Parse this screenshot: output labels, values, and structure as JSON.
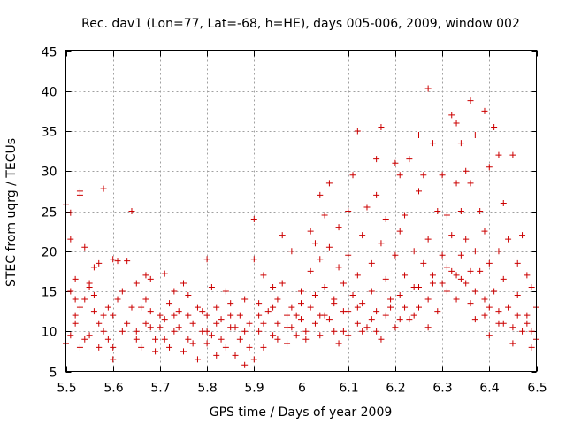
{
  "chart_data": {
    "type": "scatter",
    "title": "Rec. dav1 (Lon=77, Lat=-68, h=HE), days 005-006, 2009, window 002",
    "xlabel": "GPS time / Days of year 2009",
    "ylabel": "STEC from uqrg / TECUs",
    "xlim": [
      5.5,
      6.5
    ],
    "ylim": [
      5,
      45
    ],
    "xticks": [
      5.5,
      5.6,
      5.7,
      5.8,
      5.9,
      6.0,
      6.1,
      6.2,
      6.3,
      6.4,
      6.5
    ],
    "xtick_labels": [
      "5.5",
      "5.6",
      "5.7",
      "5.8",
      "5.9",
      "6",
      "6.1",
      "6.2",
      "6.3",
      "6.4",
      "6.5"
    ],
    "yticks": [
      5,
      10,
      15,
      20,
      25,
      30,
      35,
      40,
      45
    ],
    "ytick_labels": [
      "5",
      "10",
      "15",
      "20",
      "25",
      "30",
      "35",
      "40",
      "45"
    ],
    "grid": true,
    "marker": "plus",
    "color": "#cc0000",
    "series": [
      {
        "name": "STEC",
        "points": [
          [
            5.5,
            25.8
          ],
          [
            5.51,
            24.8
          ],
          [
            5.51,
            21.5
          ],
          [
            5.52,
            16.5
          ],
          [
            5.52,
            14.0
          ],
          [
            5.52,
            12.0
          ],
          [
            5.51,
            9.5
          ],
          [
            5.5,
            8.5
          ],
          [
            5.53,
            27.5
          ],
          [
            5.53,
            27.0
          ],
          [
            5.54,
            20.5
          ],
          [
            5.55,
            16.0
          ],
          [
            5.55,
            15.5
          ],
          [
            5.53,
            13.0
          ],
          [
            5.54,
            9.0
          ],
          [
            5.53,
            8.0
          ],
          [
            5.56,
            18.0
          ],
          [
            5.57,
            18.5
          ],
          [
            5.56,
            12.5
          ],
          [
            5.57,
            11.0
          ],
          [
            5.58,
            10.0
          ],
          [
            5.57,
            8.0
          ],
          [
            5.58,
            27.8
          ],
          [
            5.59,
            13.0
          ],
          [
            5.6,
            19.0
          ],
          [
            5.61,
            18.8
          ],
          [
            5.6,
            12.0
          ],
          [
            5.6,
            8.0
          ],
          [
            5.6,
            6.5
          ],
          [
            5.62,
            15.0
          ],
          [
            5.63,
            18.8
          ],
          [
            5.63,
            11.0
          ],
          [
            5.64,
            25.0
          ],
          [
            5.65,
            16.0
          ],
          [
            5.65,
            10.0
          ],
          [
            5.66,
            8.0
          ],
          [
            5.66,
            13.0
          ],
          [
            5.67,
            14.0
          ],
          [
            5.67,
            17.0
          ],
          [
            5.68,
            16.5
          ],
          [
            5.68,
            10.5
          ],
          [
            5.69,
            9.0
          ],
          [
            5.69,
            7.5
          ],
          [
            5.7,
            12.0
          ],
          [
            5.71,
            17.2
          ],
          [
            5.71,
            11.5
          ],
          [
            5.72,
            13.5
          ],
          [
            5.72,
            8.0
          ],
          [
            5.73,
            15.0
          ],
          [
            5.73,
            10.0
          ],
          [
            5.74,
            12.5
          ],
          [
            5.75,
            16.0
          ],
          [
            5.75,
            7.5
          ],
          [
            5.76,
            14.5
          ],
          [
            5.76,
            9.0
          ],
          [
            5.77,
            11.0
          ],
          [
            5.78,
            13.0
          ],
          [
            5.78,
            6.5
          ],
          [
            5.79,
            10.0
          ],
          [
            5.8,
            19.0
          ],
          [
            5.8,
            12.0
          ],
          [
            5.8,
            8.5
          ],
          [
            5.81,
            15.5
          ],
          [
            5.81,
            9.5
          ],
          [
            5.82,
            13.0
          ],
          [
            5.82,
            7.0
          ],
          [
            5.83,
            11.5
          ],
          [
            5.84,
            15.0
          ],
          [
            5.84,
            8.0
          ],
          [
            5.85,
            10.5
          ],
          [
            5.85,
            13.5
          ],
          [
            5.86,
            7.0
          ],
          [
            5.87,
            12.0
          ],
          [
            5.87,
            9.0
          ],
          [
            5.88,
            14.0
          ],
          [
            5.88,
            5.8
          ],
          [
            5.89,
            11.0
          ],
          [
            5.9,
            24.0
          ],
          [
            5.9,
            19.0
          ],
          [
            5.9,
            6.5
          ],
          [
            5.91,
            13.5
          ],
          [
            5.91,
            10.0
          ],
          [
            5.92,
            17.0
          ],
          [
            5.92,
            8.0
          ],
          [
            5.93,
            12.5
          ],
          [
            5.94,
            15.5
          ],
          [
            5.94,
            9.5
          ],
          [
            5.95,
            14.0
          ],
          [
            5.95,
            11.0
          ],
          [
            5.96,
            22.0
          ],
          [
            5.96,
            16.0
          ],
          [
            5.97,
            10.5
          ],
          [
            5.97,
            8.5
          ],
          [
            5.98,
            20.0
          ],
          [
            5.98,
            13.0
          ],
          [
            5.99,
            12.0
          ],
          [
            5.99,
            9.5
          ],
          [
            6.0,
            15.0
          ],
          [
            6.0,
            11.5
          ],
          [
            6.01,
            10.0
          ],
          [
            6.02,
            22.5
          ],
          [
            6.02,
            17.5
          ],
          [
            6.02,
            13.0
          ],
          [
            6.03,
            21.0
          ],
          [
            6.03,
            11.0
          ],
          [
            6.04,
            27.0
          ],
          [
            6.04,
            19.0
          ],
          [
            6.04,
            9.5
          ],
          [
            6.05,
            24.5
          ],
          [
            6.05,
            15.5
          ],
          [
            6.05,
            12.0
          ],
          [
            6.06,
            28.5
          ],
          [
            6.06,
            20.5
          ],
          [
            6.07,
            14.0
          ],
          [
            6.07,
            10.0
          ],
          [
            6.08,
            23.0
          ],
          [
            6.08,
            18.0
          ],
          [
            6.08,
            8.5
          ],
          [
            6.09,
            16.0
          ],
          [
            6.09,
            12.5
          ],
          [
            6.1,
            25.0
          ],
          [
            6.1,
            19.5
          ],
          [
            6.1,
            9.5
          ],
          [
            6.11,
            29.5
          ],
          [
            6.11,
            14.5
          ],
          [
            6.12,
            35.0
          ],
          [
            6.12,
            17.0
          ],
          [
            6.12,
            11.0
          ],
          [
            6.13,
            22.0
          ],
          [
            6.13,
            13.5
          ],
          [
            6.14,
            25.5
          ],
          [
            6.14,
            10.5
          ],
          [
            6.15,
            18.5
          ],
          [
            6.15,
            15.0
          ],
          [
            6.16,
            31.5
          ],
          [
            6.16,
            27.0
          ],
          [
            6.16,
            12.5
          ],
          [
            6.17,
            35.5
          ],
          [
            6.17,
            21.0
          ],
          [
            6.17,
            9.0
          ],
          [
            6.18,
            24.0
          ],
          [
            6.18,
            16.5
          ],
          [
            6.19,
            13.0
          ],
          [
            6.2,
            31.0
          ],
          [
            6.2,
            19.5
          ],
          [
            6.2,
            10.5
          ],
          [
            6.21,
            29.5
          ],
          [
            6.21,
            22.5
          ],
          [
            6.21,
            14.5
          ],
          [
            6.22,
            24.5
          ],
          [
            6.22,
            17.0
          ],
          [
            6.23,
            31.5
          ],
          [
            6.23,
            11.5
          ],
          [
            6.24,
            20.0
          ],
          [
            6.24,
            15.5
          ],
          [
            6.25,
            34.5
          ],
          [
            6.25,
            27.5
          ],
          [
            6.25,
            13.0
          ],
          [
            6.26,
            29.5
          ],
          [
            6.26,
            18.5
          ],
          [
            6.27,
            40.3
          ],
          [
            6.27,
            21.5
          ],
          [
            6.27,
            10.5
          ],
          [
            6.28,
            33.5
          ],
          [
            6.28,
            16.0
          ],
          [
            6.29,
            25.0
          ],
          [
            6.29,
            12.5
          ],
          [
            6.3,
            29.5
          ],
          [
            6.3,
            19.5
          ],
          [
            6.31,
            24.5
          ],
          [
            6.31,
            15.0
          ],
          [
            6.32,
            37.0
          ],
          [
            6.32,
            22.0
          ],
          [
            6.32,
            17.5
          ],
          [
            6.33,
            36.0
          ],
          [
            6.33,
            28.5
          ],
          [
            6.33,
            14.0
          ],
          [
            6.34,
            33.5
          ],
          [
            6.34,
            25.0
          ],
          [
            6.34,
            19.5
          ],
          [
            6.35,
            30.0
          ],
          [
            6.35,
            21.5
          ],
          [
            6.35,
            16.0
          ],
          [
            6.36,
            38.8
          ],
          [
            6.36,
            28.5
          ],
          [
            6.36,
            13.5
          ],
          [
            6.37,
            34.5
          ],
          [
            6.37,
            20.0
          ],
          [
            6.37,
            11.5
          ],
          [
            6.38,
            25.0
          ],
          [
            6.38,
            17.5
          ],
          [
            6.39,
            37.5
          ],
          [
            6.39,
            22.5
          ],
          [
            6.39,
            12.0
          ],
          [
            6.4,
            30.5
          ],
          [
            6.4,
            18.5
          ],
          [
            6.4,
            9.5
          ],
          [
            6.41,
            35.5
          ],
          [
            6.41,
            15.0
          ],
          [
            6.42,
            32.0
          ],
          [
            6.42,
            20.0
          ],
          [
            6.42,
            11.0
          ],
          [
            6.43,
            26.0
          ],
          [
            6.43,
            16.5
          ],
          [
            6.44,
            21.5
          ],
          [
            6.44,
            13.0
          ],
          [
            6.45,
            32.0
          ],
          [
            6.45,
            8.5
          ],
          [
            6.46,
            18.5
          ],
          [
            6.46,
            14.5
          ],
          [
            6.47,
            22.0
          ],
          [
            6.47,
            10.0
          ],
          [
            6.48,
            17.0
          ],
          [
            6.48,
            12.0
          ],
          [
            6.49,
            15.5
          ],
          [
            6.49,
            8.0
          ],
          [
            6.5,
            13.0
          ],
          [
            6.5,
            9.0
          ],
          [
            5.51,
            15.0
          ],
          [
            5.52,
            11.0
          ],
          [
            5.54,
            14.0
          ],
          [
            5.55,
            9.5
          ],
          [
            5.56,
            14.5
          ],
          [
            5.58,
            12.0
          ],
          [
            5.59,
            9.0
          ],
          [
            5.61,
            14.0
          ],
          [
            5.62,
            10.0
          ],
          [
            5.64,
            13.0
          ],
          [
            5.65,
            9.0
          ],
          [
            5.67,
            11.0
          ],
          [
            5.68,
            12.5
          ],
          [
            5.7,
            10.5
          ],
          [
            5.71,
            9.0
          ],
          [
            5.73,
            12.0
          ],
          [
            5.74,
            10.5
          ],
          [
            5.76,
            12.0
          ],
          [
            5.77,
            8.5
          ],
          [
            5.79,
            12.5
          ],
          [
            5.8,
            10.0
          ],
          [
            5.82,
            11.0
          ],
          [
            5.83,
            9.0
          ],
          [
            5.85,
            12.0
          ],
          [
            5.86,
            10.5
          ],
          [
            5.88,
            10.0
          ],
          [
            5.89,
            8.0
          ],
          [
            5.91,
            12.0
          ],
          [
            5.92,
            11.0
          ],
          [
            5.94,
            13.0
          ],
          [
            5.95,
            9.0
          ],
          [
            5.97,
            12.0
          ],
          [
            5.98,
            10.5
          ],
          [
            6.0,
            13.5
          ],
          [
            6.01,
            9.0
          ],
          [
            6.03,
            14.5
          ],
          [
            6.04,
            12.0
          ],
          [
            6.06,
            11.5
          ],
          [
            6.07,
            13.5
          ],
          [
            6.09,
            10.0
          ],
          [
            6.1,
            12.5
          ],
          [
            6.12,
            13.0
          ],
          [
            6.13,
            10.0
          ],
          [
            6.15,
            11.5
          ],
          [
            6.16,
            10.0
          ],
          [
            6.18,
            12.0
          ],
          [
            6.19,
            14.0
          ],
          [
            6.21,
            11.5
          ],
          [
            6.22,
            13.0
          ],
          [
            6.24,
            12.0
          ],
          [
            6.25,
            15.5
          ],
          [
            6.27,
            14.0
          ],
          [
            6.28,
            17.0
          ],
          [
            6.3,
            16.0
          ],
          [
            6.31,
            18.0
          ],
          [
            6.33,
            17.0
          ],
          [
            6.34,
            16.5
          ],
          [
            6.36,
            17.5
          ],
          [
            6.37,
            15.0
          ],
          [
            6.39,
            14.0
          ],
          [
            6.4,
            13.0
          ],
          [
            6.42,
            12.5
          ],
          [
            6.43,
            11.0
          ],
          [
            6.45,
            10.5
          ],
          [
            6.46,
            12.0
          ],
          [
            6.48,
            11.0
          ],
          [
            6.49,
            10.0
          ]
        ]
      }
    ]
  }
}
